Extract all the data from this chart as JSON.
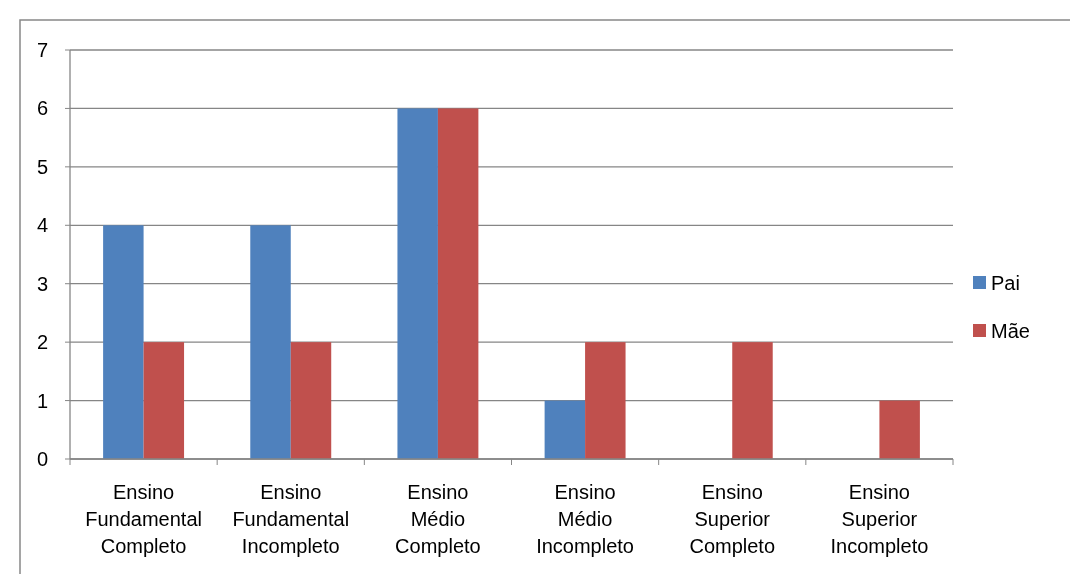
{
  "chart_data": {
    "type": "bar",
    "categories": [
      "Ensino Fundamental Completo",
      "Ensino Fundamental Incompleto",
      "Ensino Médio Completo",
      "Ensino Médio Incompleto",
      "Ensino Superior Completo",
      "Ensino Superior Incompleto"
    ],
    "series": [
      {
        "name": "Pai",
        "color": "#4f81bd",
        "values": [
          4,
          4,
          6,
          1,
          0,
          0
        ]
      },
      {
        "name": "Mãe",
        "color": "#c0504d",
        "values": [
          2,
          2,
          6,
          2,
          2,
          1
        ]
      }
    ],
    "ylim": [
      0,
      7
    ],
    "yticks": [
      0,
      1,
      2,
      3,
      4,
      5,
      6,
      7
    ],
    "grid": "y",
    "legend": "right"
  }
}
